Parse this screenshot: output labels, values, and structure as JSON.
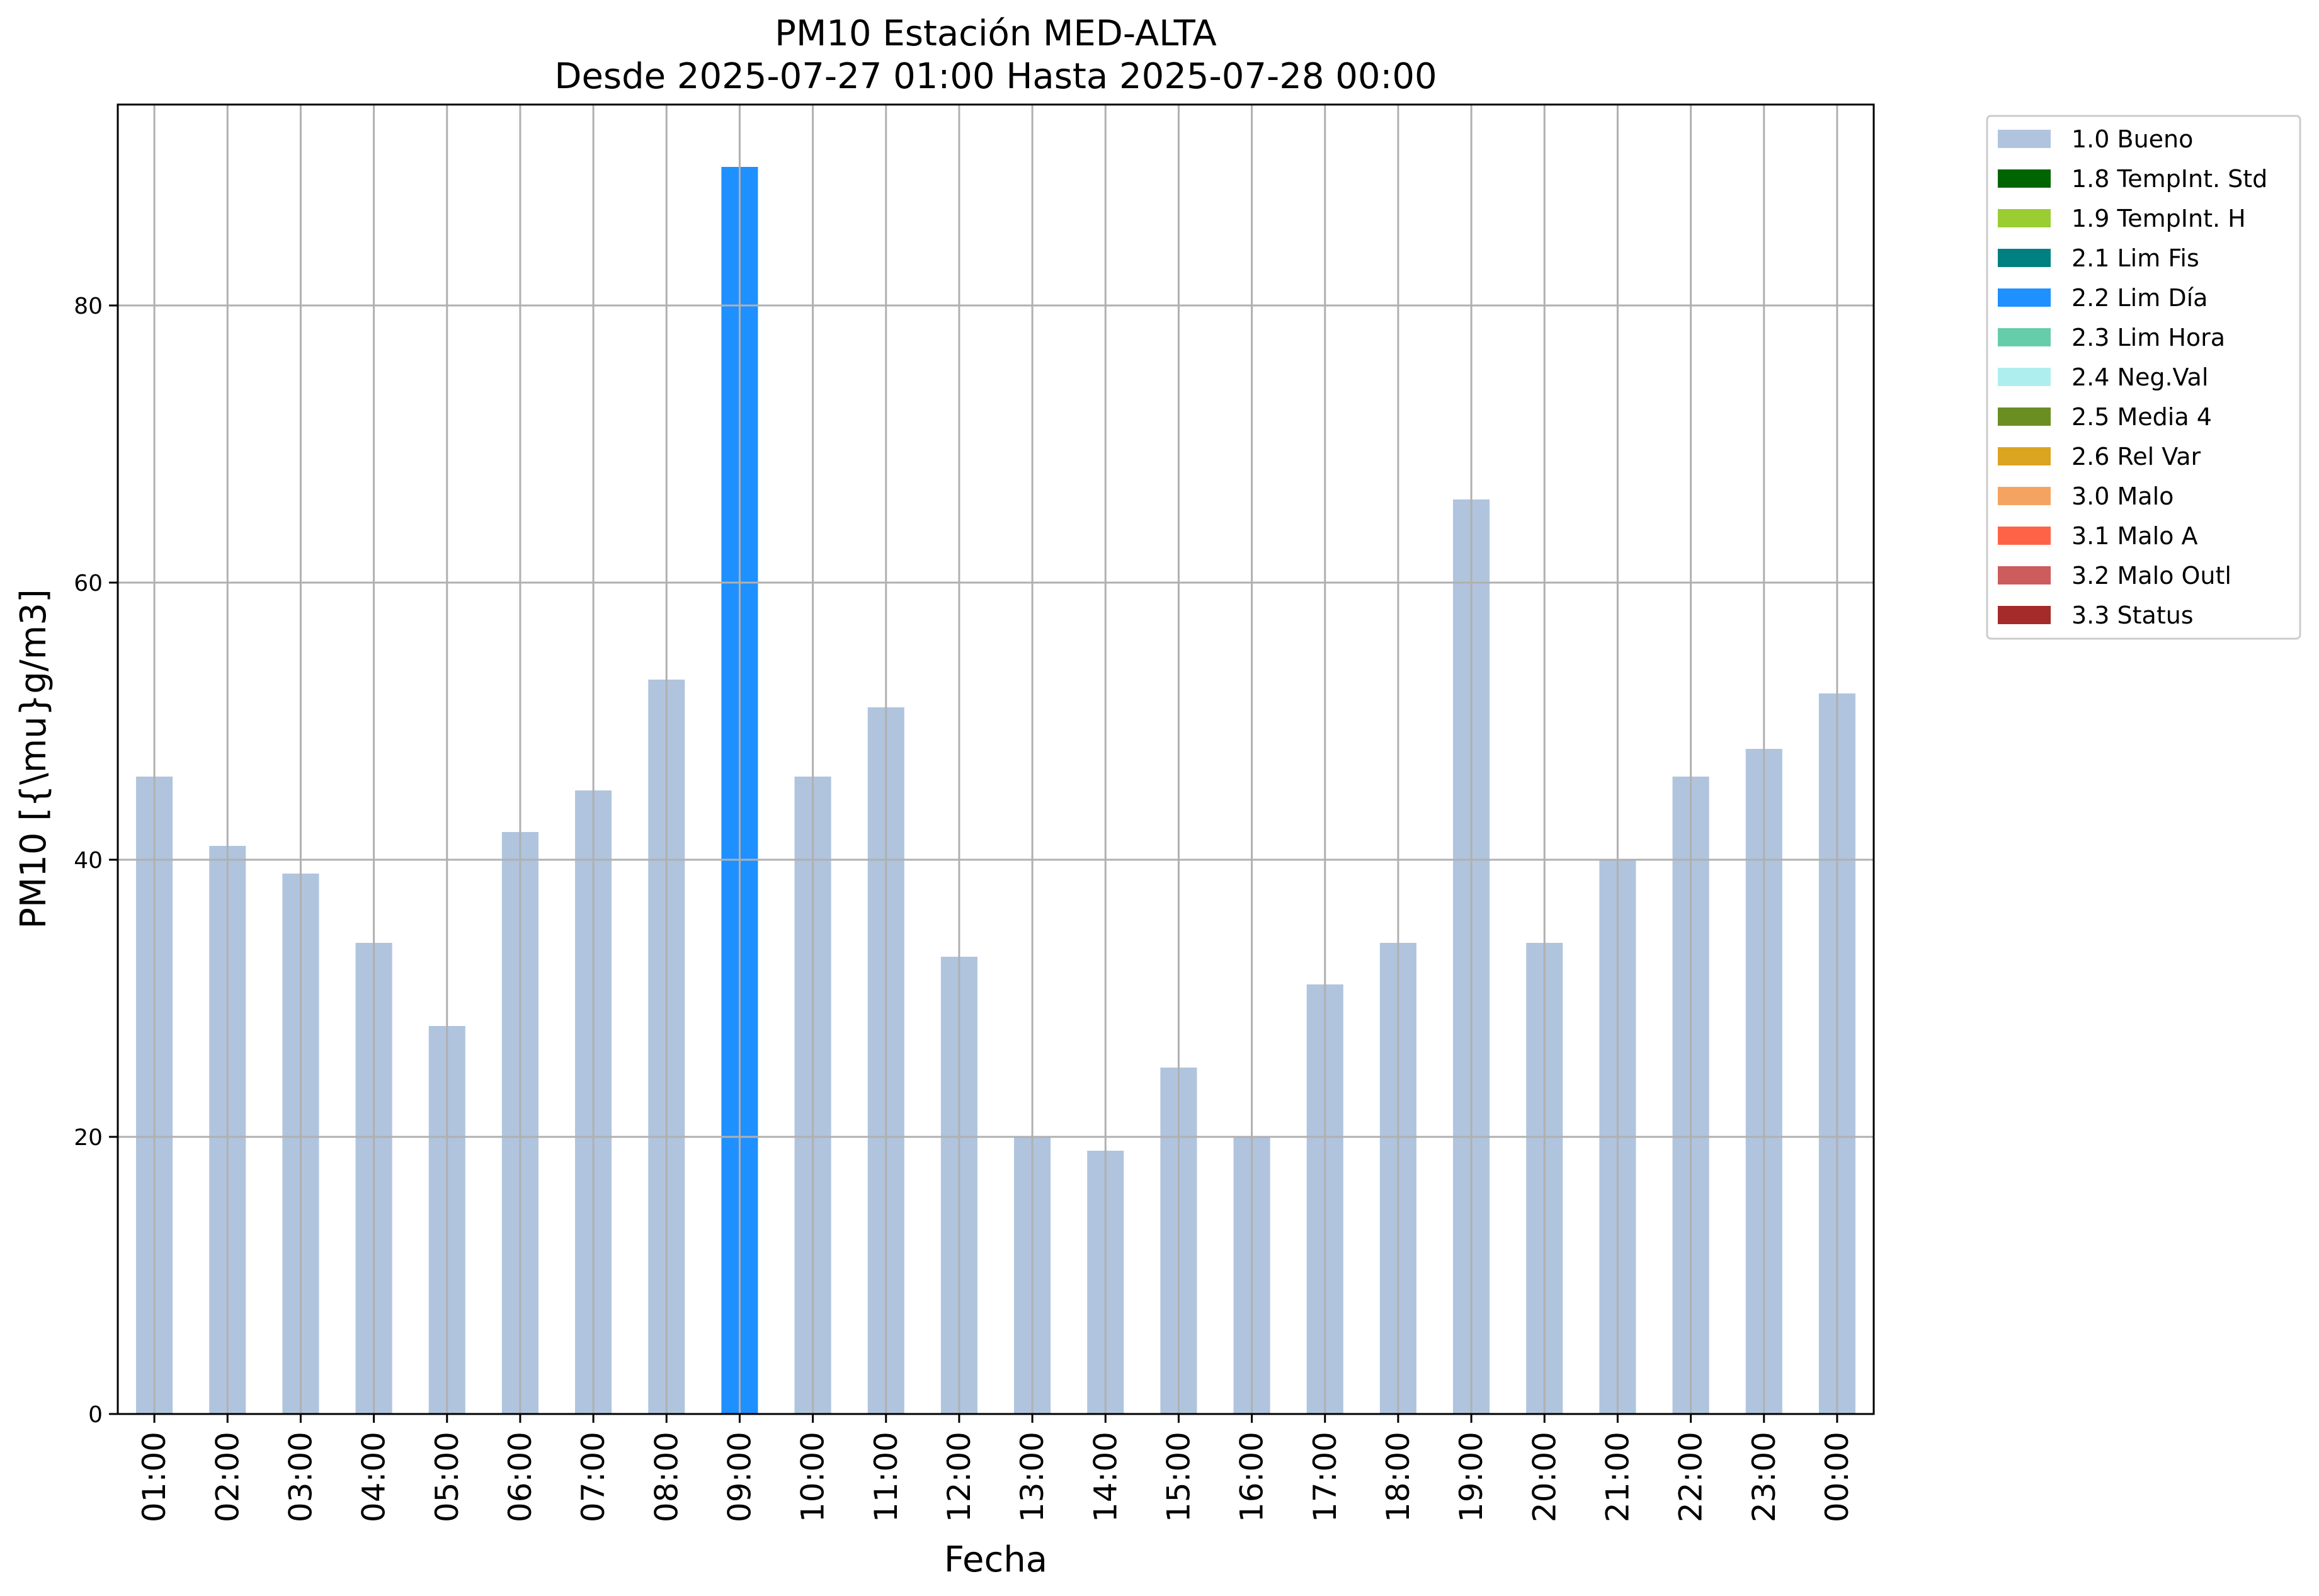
{
  "chart_data": {
    "type": "bar",
    "title": "PM10 Estación MED-ALTA",
    "subtitle": "Desde 2025-07-27 01:00 Hasta 2025-07-28 00:00",
    "xlabel": "Fecha",
    "ylabel": "PM10 [{\\mu}g/m3]",
    "ylim": [
      0,
      94.5
    ],
    "yticks": [
      0,
      20,
      40,
      60,
      80
    ],
    "grid": true,
    "legend_position": "outside-top-right",
    "categories": [
      "01:00",
      "02:00",
      "03:00",
      "04:00",
      "05:00",
      "06:00",
      "07:00",
      "08:00",
      "09:00",
      "10:00",
      "11:00",
      "12:00",
      "13:00",
      "14:00",
      "15:00",
      "16:00",
      "17:00",
      "18:00",
      "19:00",
      "20:00",
      "21:00",
      "22:00",
      "23:00",
      "00:00"
    ],
    "values": [
      46,
      41,
      39,
      34,
      28,
      42,
      45,
      53,
      90,
      46,
      51,
      33,
      20,
      19,
      25,
      20,
      31,
      34,
      66,
      34,
      40,
      46,
      48,
      52
    ],
    "flags": [
      "1.0 Bueno",
      "1.0 Bueno",
      "1.0 Bueno",
      "1.0 Bueno",
      "1.0 Bueno",
      "1.0 Bueno",
      "1.0 Bueno",
      "1.0 Bueno",
      "2.2 Lim Día",
      "1.0 Bueno",
      "1.0 Bueno",
      "1.0 Bueno",
      "1.0 Bueno",
      "1.0 Bueno",
      "1.0 Bueno",
      "1.0 Bueno",
      "1.0 Bueno",
      "1.0 Bueno",
      "1.0 Bueno",
      "1.0 Bueno",
      "1.0 Bueno",
      "1.0 Bueno",
      "1.0 Bueno",
      "1.0 Bueno"
    ],
    "legend": [
      {
        "label": "1.0 Bueno",
        "color": "#b0c4de"
      },
      {
        "label": "1.8 TempInt. Std",
        "color": "#006400"
      },
      {
        "label": "1.9 TempInt. H",
        "color": "#9acd32"
      },
      {
        "label": "2.1 Lim Fis",
        "color": "#008080"
      },
      {
        "label": "2.2 Lim Día",
        "color": "#1e90ff"
      },
      {
        "label": "2.3 Lim Hora",
        "color": "#66cdaa"
      },
      {
        "label": "2.4 Neg.Val",
        "color": "#afeeee"
      },
      {
        "label": "2.5 Media 4",
        "color": "#6b8e23"
      },
      {
        "label": "2.6 Rel Var",
        "color": "#daa520"
      },
      {
        "label": "3.0 Malo",
        "color": "#f4a460"
      },
      {
        "label": "3.1 Malo A",
        "color": "#ff6347"
      },
      {
        "label": "3.2 Malo Outl",
        "color": "#cd5c5c"
      },
      {
        "label": "3.3 Status",
        "color": "#a52a2a"
      }
    ]
  }
}
